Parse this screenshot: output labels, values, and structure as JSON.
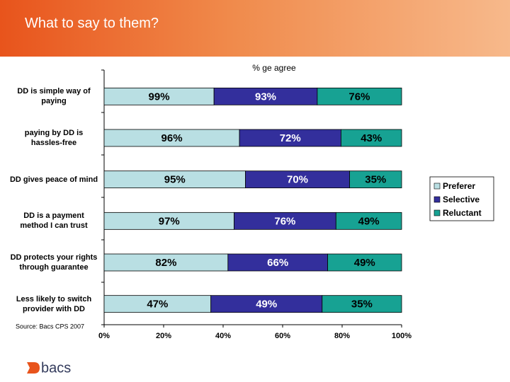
{
  "chart_data": {
    "type": "bar",
    "orientation": "horizontal",
    "stacking": "percent",
    "title": "What to say to them?",
    "axis_label": "% ge agree",
    "note": "Source: Bacs CPS 2007",
    "categories": [
      "DD is simple way of paying",
      "paying by DD is hassles-free",
      "DD gives peace of mind",
      "DD is a payment method I can trust",
      "DD protects your rights through guarantee",
      "Less likely to switch provider with DD"
    ],
    "series": [
      {
        "name": "Preferer",
        "color": "#b9dfe3",
        "values": [
          99,
          96,
          95,
          97,
          82,
          47
        ],
        "value_labels": [
          "99%",
          "96%",
          "95%",
          "97%",
          "82%",
          "47%"
        ]
      },
      {
        "name": "Selective",
        "color": "#332f9c",
        "values": [
          93,
          72,
          70,
          76,
          66,
          49
        ],
        "value_labels": [
          "93%",
          "72%",
          "70%",
          "76%",
          "66%",
          "49%"
        ]
      },
      {
        "name": "Reluctant",
        "color": "#17a293",
        "values": [
          76,
          43,
          35,
          49,
          49,
          35
        ],
        "value_labels": [
          "76%",
          "43%",
          "35%",
          "49%",
          "49%",
          "35%"
        ]
      }
    ],
    "xlim": [
      0,
      100
    ],
    "xticks": [
      {
        "value": 0,
        "label": "0%"
      },
      {
        "value": 20,
        "label": "20%"
      },
      {
        "value": 40,
        "label": "40%"
      },
      {
        "value": 60,
        "label": "60%"
      },
      {
        "value": 80,
        "label": "80%"
      },
      {
        "value": 100,
        "label": "100%"
      }
    ],
    "legend": "right"
  },
  "logo": "bacs"
}
